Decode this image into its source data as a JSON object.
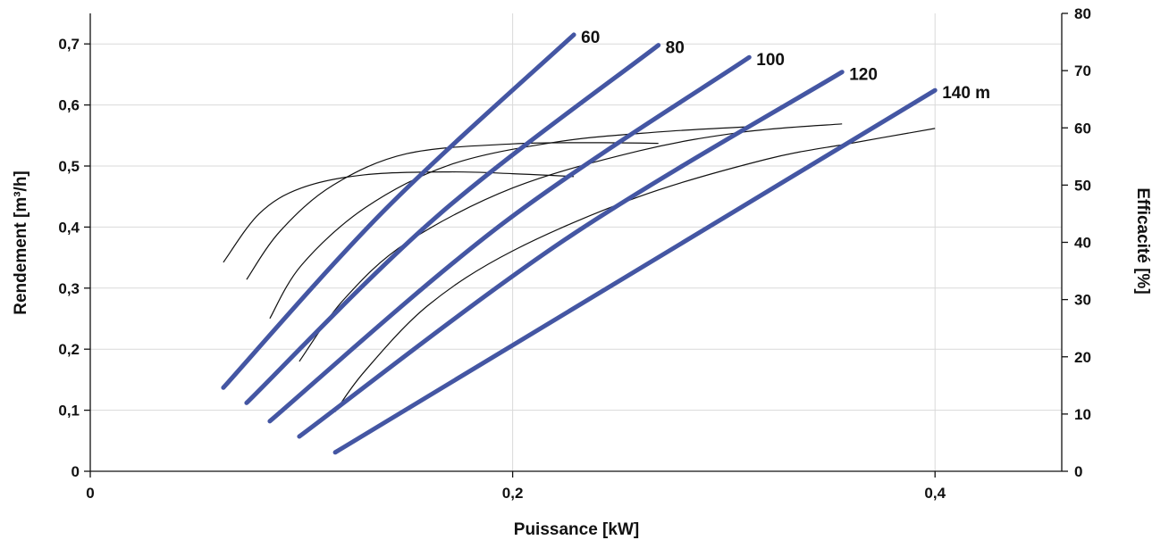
{
  "chart_data": {
    "type": "line",
    "xlabel": "Puissance [kW]",
    "ylabel_left": "Rendement [m³/h]",
    "ylabel_right": "Efficacité [%]",
    "xlim": [
      0,
      0.46
    ],
    "ylim_left": [
      0,
      0.75
    ],
    "ylim_right": [
      0,
      80
    ],
    "x_ticks": [
      0,
      0.2,
      0.4
    ],
    "x_tick_labels": [
      "0",
      "0,2",
      "0,4"
    ],
    "y_left_ticks": [
      0,
      0.1,
      0.2,
      0.3,
      0.4,
      0.5,
      0.6,
      0.7
    ],
    "y_left_tick_labels": [
      "0",
      "0,1",
      "0,2",
      "0,3",
      "0,4",
      "0,5",
      "0,6",
      "0,7"
    ],
    "y_right_ticks": [
      0,
      10,
      20,
      30,
      40,
      50,
      60,
      70,
      80
    ],
    "y_right_tick_labels": [
      "0",
      "10",
      "20",
      "30",
      "40",
      "50",
      "60",
      "70",
      "80"
    ],
    "grid": true,
    "colors": {
      "yield": "#4456a3",
      "efficiency": "#111111"
    },
    "series": [
      {
        "name": "60",
        "axis": "left",
        "points": [
          [
            0.063,
            0.137
          ],
          [
            0.14,
            0.43
          ],
          [
            0.229,
            0.715
          ]
        ]
      },
      {
        "name": "80",
        "axis": "left",
        "points": [
          [
            0.074,
            0.112
          ],
          [
            0.165,
            0.42
          ],
          [
            0.269,
            0.698
          ]
        ]
      },
      {
        "name": "100",
        "axis": "left",
        "points": [
          [
            0.085,
            0.082
          ],
          [
            0.195,
            0.405
          ],
          [
            0.312,
            0.678
          ]
        ]
      },
      {
        "name": "120",
        "axis": "left",
        "points": [
          [
            0.099,
            0.057
          ],
          [
            0.225,
            0.38
          ],
          [
            0.356,
            0.654
          ]
        ]
      },
      {
        "name": "140 m",
        "axis": "left",
        "points": [
          [
            0.116,
            0.031
          ],
          [
            0.4,
            0.624
          ]
        ]
      }
    ],
    "efficiency_curves": [
      {
        "axis": "right",
        "points": [
          [
            0.063,
            36.5
          ],
          [
            0.08,
            45
          ],
          [
            0.1,
            49.5
          ],
          [
            0.13,
            51.8
          ],
          [
            0.17,
            52.3
          ],
          [
            0.2,
            52
          ],
          [
            0.229,
            51.5
          ]
        ]
      },
      {
        "axis": "right",
        "points": [
          [
            0.074,
            33.5
          ],
          [
            0.09,
            42
          ],
          [
            0.115,
            50
          ],
          [
            0.15,
            55.5
          ],
          [
            0.2,
            57.2
          ],
          [
            0.24,
            57.4
          ],
          [
            0.269,
            57.3
          ]
        ]
      },
      {
        "axis": "right",
        "points": [
          [
            0.085,
            26.7
          ],
          [
            0.1,
            36
          ],
          [
            0.13,
            46
          ],
          [
            0.17,
            53.5
          ],
          [
            0.22,
            57.5
          ],
          [
            0.27,
            59.3
          ],
          [
            0.312,
            60.2
          ]
        ]
      },
      {
        "axis": "right",
        "points": [
          [
            0.099,
            19.2
          ],
          [
            0.12,
            30
          ],
          [
            0.15,
            40
          ],
          [
            0.2,
            49.5
          ],
          [
            0.26,
            56
          ],
          [
            0.31,
            59.3
          ],
          [
            0.356,
            60.7
          ]
        ]
      },
      {
        "axis": "right",
        "points": [
          [
            0.116,
            10.4
          ],
          [
            0.13,
            17.5
          ],
          [
            0.16,
            29
          ],
          [
            0.2,
            38.5
          ],
          [
            0.26,
            48
          ],
          [
            0.32,
            54.5
          ],
          [
            0.36,
            57.3
          ],
          [
            0.4,
            59.9
          ]
        ]
      }
    ]
  }
}
